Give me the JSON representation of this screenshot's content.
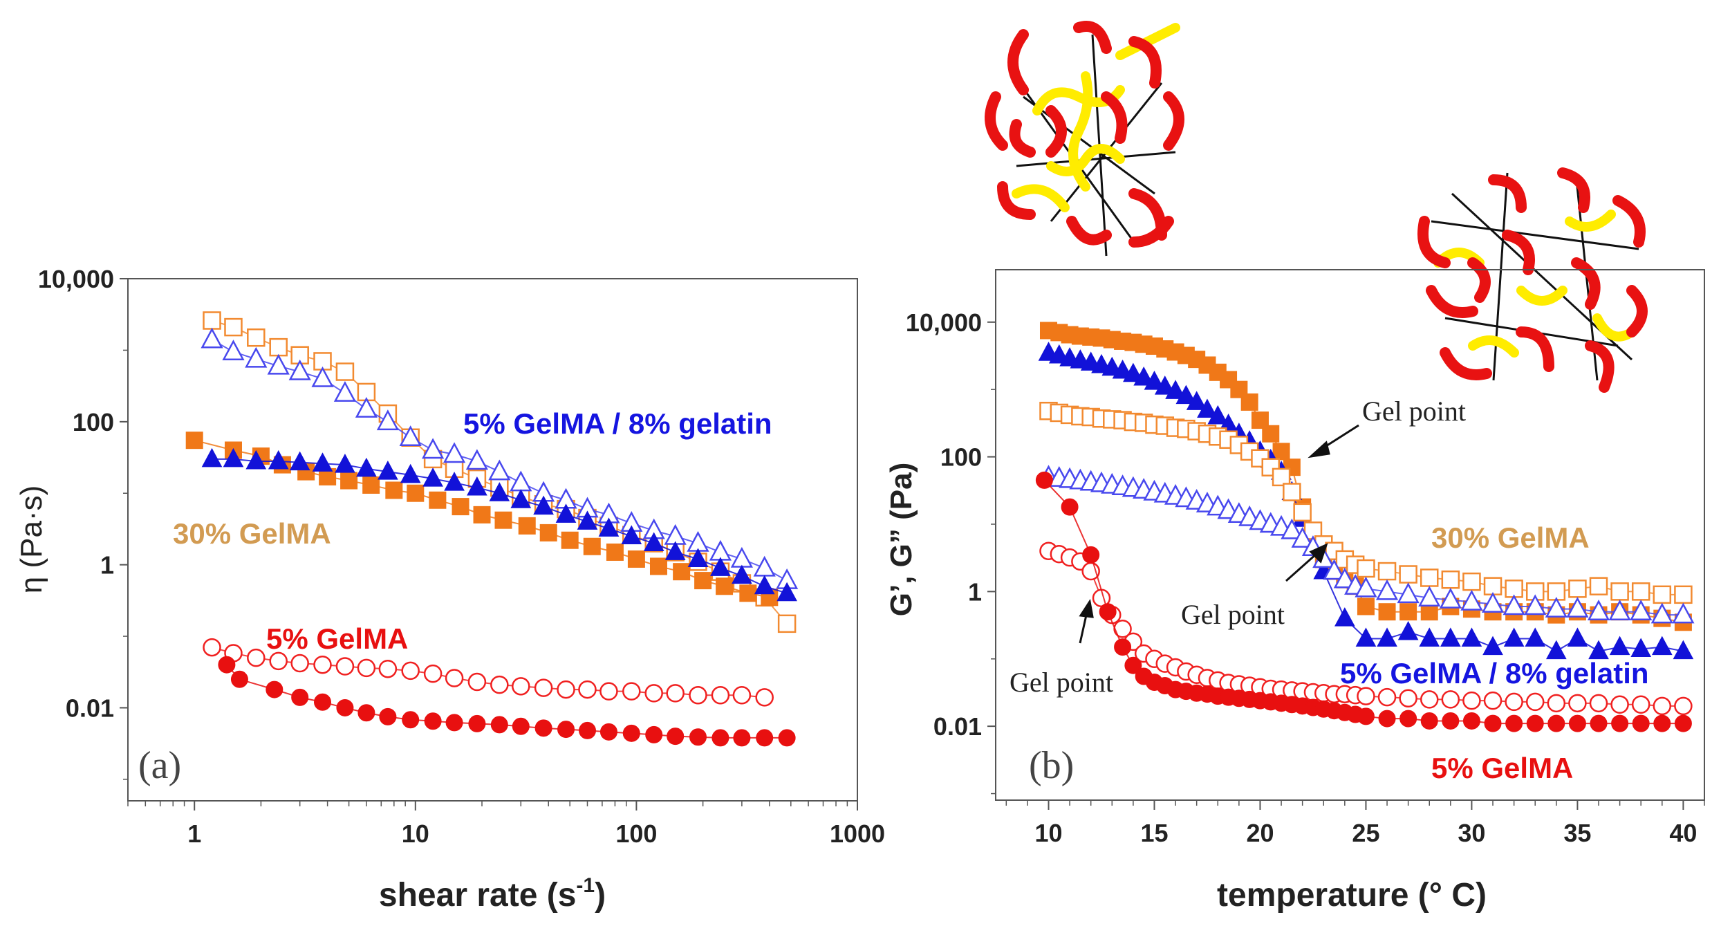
{
  "chart_data": [
    {
      "id": "a",
      "type": "scatter",
      "panel_label": "(a)",
      "xlabel_main": "shear rate (s",
      "xlabel_sup": "-1",
      "xlabel_end": ")",
      "ylabel": "η (Pa·s)",
      "xscale": "log",
      "yscale": "log",
      "xlim": [
        0.5,
        1000
      ],
      "ylim": [
        0.0005,
        10000
      ],
      "x_ticks": [
        1,
        10,
        100,
        1000
      ],
      "x_tick_labels": [
        "1",
        "10",
        "100",
        "1000"
      ],
      "y_ticks": [
        10000,
        100,
        1,
        0.01
      ],
      "y_tick_labels": [
        "10,000",
        "100",
        "1",
        "0.01"
      ],
      "annotations": [
        {
          "text": "5% GelMA / 8% gelatin",
          "color": "#1515e0"
        },
        {
          "text": "30% GelMA",
          "color": "#d29b52"
        },
        {
          "text": "5% GelMA",
          "color": "#e81010"
        }
      ],
      "series": [
        {
          "name": "30% GelMA open",
          "marker": "square",
          "filled": false,
          "color": "#f28a30",
          "x": [
            1.2,
            1.5,
            1.9,
            2.4,
            3.0,
            3.8,
            4.8,
            6.0,
            7.5,
            9.5,
            12,
            15,
            19,
            24,
            30,
            38,
            48,
            60,
            75,
            95,
            120,
            150,
            190,
            240,
            300,
            380,
            480
          ],
          "y": [
            2600,
            2100,
            1500,
            1100,
            850,
            700,
            500,
            260,
            130,
            60,
            30,
            22,
            16,
            12,
            9,
            7,
            6,
            4.5,
            3.5,
            2.6,
            2.0,
            1.5,
            1.1,
            0.8,
            0.55,
            0.35,
            0.15
          ]
        },
        {
          "name": "5% GelMA / 8% gelatin open",
          "marker": "triangle",
          "filled": false,
          "color": "#4848ee",
          "x": [
            1.2,
            1.5,
            1.9,
            2.4,
            3.0,
            3.8,
            4.8,
            6.0,
            7.5,
            9.5,
            12,
            15,
            19,
            24,
            30,
            38,
            48,
            60,
            75,
            95,
            120,
            150,
            190,
            240,
            300,
            380,
            480
          ],
          "y": [
            1400,
            950,
            750,
            600,
            500,
            400,
            250,
            150,
            100,
            60,
            40,
            35,
            28,
            20,
            14,
            10,
            8,
            6,
            5,
            3.8,
            3,
            2.5,
            2,
            1.5,
            1.2,
            0.9,
            0.6
          ]
        },
        {
          "name": "30% GelMA filled",
          "marker": "square",
          "filled": true,
          "color": "#f07818",
          "x": [
            1,
            1.5,
            2,
            2.5,
            3.2,
            4,
            5,
            6.3,
            8,
            10,
            12.6,
            16,
            20,
            25,
            32,
            40,
            50,
            63,
            80,
            100,
            126,
            160,
            200,
            250,
            320,
            400
          ],
          "y": [
            55,
            40,
            33,
            25,
            20,
            17,
            15,
            13,
            11,
            10,
            8,
            6.5,
            5,
            4.2,
            3.5,
            2.8,
            2.2,
            1.8,
            1.5,
            1.2,
            0.95,
            0.8,
            0.6,
            0.5,
            0.4,
            0.35
          ]
        },
        {
          "name": "5% GelMA / 8% gelatin filled",
          "marker": "triangle",
          "filled": true,
          "color": "#1212d8",
          "x": [
            1.2,
            1.5,
            1.9,
            2.4,
            3.0,
            3.8,
            4.8,
            6.0,
            7.5,
            9.5,
            12,
            15,
            19,
            24,
            30,
            38,
            48,
            60,
            75,
            95,
            120,
            150,
            190,
            240,
            300,
            380,
            480
          ],
          "y": [
            30,
            30,
            28,
            28,
            27,
            26,
            25,
            22,
            20,
            18,
            16,
            14,
            12,
            10,
            8,
            6.5,
            5,
            4,
            3.2,
            2.5,
            2,
            1.5,
            1.2,
            0.9,
            0.7,
            0.5,
            0.4
          ]
        },
        {
          "name": "5% GelMA open",
          "marker": "circle",
          "filled": false,
          "color": "#f02020",
          "x": [
            1.2,
            1.5,
            1.9,
            2.4,
            3.0,
            3.8,
            4.8,
            6.0,
            7.5,
            9.5,
            12,
            15,
            19,
            24,
            30,
            38,
            48,
            60,
            75,
            95,
            120,
            150,
            190,
            240,
            300,
            380
          ],
          "y": [
            0.07,
            0.058,
            0.05,
            0.045,
            0.042,
            0.04,
            0.038,
            0.036,
            0.035,
            0.033,
            0.03,
            0.026,
            0.023,
            0.021,
            0.02,
            0.019,
            0.018,
            0.018,
            0.017,
            0.017,
            0.016,
            0.016,
            0.015,
            0.015,
            0.015,
            0.014
          ]
        },
        {
          "name": "5% GelMA filled",
          "marker": "circle",
          "filled": true,
          "color": "#e81010",
          "x": [
            1.4,
            1.6,
            2.3,
            3.0,
            3.8,
            4.8,
            6.0,
            7.5,
            9.5,
            12,
            15,
            19,
            24,
            30,
            38,
            48,
            60,
            75,
            95,
            120,
            150,
            190,
            240,
            300,
            380,
            480
          ],
          "y": [
            0.04,
            0.025,
            0.018,
            0.014,
            0.012,
            0.01,
            0.0085,
            0.0075,
            0.0068,
            0.0065,
            0.0062,
            0.006,
            0.0058,
            0.0055,
            0.0052,
            0.005,
            0.0048,
            0.0046,
            0.0044,
            0.0042,
            0.004,
            0.0039,
            0.0038,
            0.0038,
            0.0038,
            0.0038
          ]
        }
      ]
    },
    {
      "id": "b",
      "type": "scatter",
      "panel_label": "(b)",
      "xlabel": "temperature (° C)",
      "ylabel": "G’, G” (Pa)",
      "xscale": "linear",
      "yscale": "log",
      "xlim": [
        7.5,
        41
      ],
      "ylim": [
        0.0008,
        60000
      ],
      "x_ticks": [
        10,
        15,
        20,
        25,
        30,
        35,
        40
      ],
      "x_tick_labels": [
        "10",
        "15",
        "20",
        "25",
        "30",
        "35",
        "40"
      ],
      "y_ticks": [
        10000,
        100,
        1,
        0.01
      ],
      "y_tick_labels": [
        "10,000",
        "100",
        "1",
        "0.01"
      ],
      "annotations": [
        {
          "text": "Gel point",
          "color": "#222222"
        },
        {
          "text": "Gel point",
          "color": "#222222"
        },
        {
          "text": "Gel point",
          "color": "#222222"
        },
        {
          "text": "30% GelMA",
          "color": "#d29b52"
        },
        {
          "text": "5% GelMA / 8% gelatin",
          "color": "#1515e0"
        },
        {
          "text": "5% GelMA",
          "color": "#e81010"
        }
      ],
      "series": [
        {
          "name": "30% GelMA G'",
          "marker": "square",
          "filled": true,
          "color": "#f07818",
          "x": [
            10,
            10.5,
            11,
            11.5,
            12,
            12.5,
            13,
            13.5,
            14,
            14.5,
            15,
            15.5,
            16,
            16.5,
            17,
            17.5,
            18,
            18.5,
            19,
            19.5,
            20,
            20.5,
            21,
            21.5,
            22,
            22.5,
            23,
            23.5,
            24,
            24.5,
            25,
            26,
            27,
            28,
            29,
            30,
            31,
            32,
            33,
            34,
            35,
            36,
            37,
            38,
            39,
            40
          ],
          "y": [
            7500,
            7000,
            6500,
            6200,
            6000,
            5800,
            5500,
            5200,
            5000,
            4700,
            4400,
            4000,
            3600,
            3200,
            2800,
            2300,
            1800,
            1400,
            1000,
            650,
            350,
            220,
            120,
            70,
            18,
            6,
            3,
            2,
            1.5,
            1.2,
            0.6,
            0.5,
            0.5,
            0.5,
            0.6,
            0.55,
            0.5,
            0.5,
            0.5,
            0.45,
            0.5,
            0.45,
            0.5,
            0.45,
            0.4,
            0.35
          ]
        },
        {
          "name": "5% GelMA / 8% gelatin G'",
          "marker": "triangle",
          "filled": true,
          "color": "#1212d8",
          "x": [
            10,
            10.5,
            11,
            11.5,
            12,
            12.5,
            13,
            13.5,
            14,
            14.5,
            15,
            15.5,
            16,
            16.5,
            17,
            17.5,
            18,
            18.5,
            19,
            19.5,
            20,
            20.5,
            21,
            21.5,
            22,
            23,
            24,
            25,
            26,
            27,
            28,
            29,
            30,
            31,
            32,
            33,
            34,
            35,
            36,
            37,
            38,
            39,
            40
          ],
          "y": [
            3500,
            3200,
            2900,
            2700,
            2500,
            2300,
            2100,
            1900,
            1700,
            1500,
            1300,
            1100,
            950,
            800,
            650,
            500,
            400,
            300,
            220,
            170,
            120,
            90,
            60,
            30,
            12,
            2,
            0.4,
            0.2,
            0.2,
            0.25,
            0.2,
            0.2,
            0.2,
            0.15,
            0.2,
            0.2,
            0.13,
            0.2,
            0.13,
            0.15,
            0.14,
            0.15,
            0.13
          ]
        },
        {
          "name": "30% GelMA G\"",
          "marker": "square",
          "filled": false,
          "color": "#f28a30",
          "x": [
            10,
            10.5,
            11,
            11.5,
            12,
            12.5,
            13,
            13.5,
            14,
            14.5,
            15,
            15.5,
            16,
            16.5,
            17,
            17.5,
            18,
            18.5,
            19,
            19.5,
            20,
            20.5,
            21,
            21.5,
            22,
            22.5,
            23,
            23.5,
            24,
            24.5,
            25,
            26,
            27,
            28,
            29,
            30,
            31,
            32,
            33,
            34,
            35,
            36,
            37,
            38,
            39,
            40
          ],
          "y": [
            480,
            450,
            420,
            400,
            390,
            370,
            360,
            350,
            330,
            320,
            300,
            290,
            270,
            260,
            240,
            220,
            200,
            180,
            150,
            120,
            95,
            70,
            50,
            30,
            15,
            8,
            5,
            4,
            3,
            2.5,
            2.2,
            2,
            1.8,
            1.6,
            1.5,
            1.4,
            1.2,
            1.1,
            1.0,
            1.0,
            1.1,
            1.2,
            1.0,
            1.0,
            0.9,
            0.9
          ]
        },
        {
          "name": "5% GelMA / 8% gelatin G\"",
          "marker": "triangle",
          "filled": false,
          "color": "#4848ee",
          "x": [
            10,
            10.5,
            11,
            11.5,
            12,
            12.5,
            13,
            13.5,
            14,
            14.5,
            15,
            15.5,
            16,
            16.5,
            17,
            17.5,
            18,
            18.5,
            19,
            19.5,
            20,
            20.5,
            21,
            21.5,
            22,
            22.5,
            23,
            23.5,
            24,
            24.5,
            25,
            26,
            27,
            28,
            29,
            30,
            31,
            32,
            33,
            34,
            35,
            36,
            37,
            38,
            39,
            40
          ],
          "y": [
            50,
            48,
            46,
            44,
            42,
            40,
            38,
            36,
            34,
            32,
            30,
            28,
            26,
            24,
            22,
            20,
            18,
            16,
            14,
            12.5,
            11,
            10,
            9,
            8,
            6,
            4.5,
            3,
            2,
            1.5,
            1.2,
            1.1,
            1.0,
            0.9,
            0.8,
            0.75,
            0.7,
            0.65,
            0.6,
            0.6,
            0.55,
            0.55,
            0.5,
            0.5,
            0.5,
            0.45,
            0.45
          ]
        },
        {
          "name": "5% GelMA G\"",
          "marker": "circle",
          "filled": false,
          "color": "#f02020",
          "x": [
            10,
            10.5,
            11,
            11.5,
            12,
            12.5,
            13,
            13.5,
            14,
            14.5,
            15,
            15.5,
            16,
            16.5,
            17,
            17.5,
            18,
            18.5,
            19,
            19.5,
            20,
            20.5,
            21,
            21.5,
            22,
            22.5,
            23,
            23.5,
            24,
            24.5,
            25,
            26,
            27,
            28,
            29,
            30,
            31,
            32,
            33,
            34,
            35,
            36,
            37,
            38,
            39,
            40
          ],
          "y": [
            4,
            3.6,
            3.2,
            2.8,
            2.0,
            0.8,
            0.45,
            0.28,
            0.18,
            0.12,
            0.1,
            0.085,
            0.075,
            0.065,
            0.058,
            0.052,
            0.048,
            0.044,
            0.042,
            0.04,
            0.038,
            0.036,
            0.035,
            0.034,
            0.033,
            0.032,
            0.031,
            0.03,
            0.03,
            0.029,
            0.028,
            0.027,
            0.026,
            0.025,
            0.025,
            0.024,
            0.024,
            0.023,
            0.023,
            0.022,
            0.022,
            0.022,
            0.021,
            0.021,
            0.02,
            0.02
          ]
        },
        {
          "name": "5% GelMA G'",
          "marker": "circle",
          "filled": true,
          "color": "#e81010",
          "x": [
            9.8,
            11,
            12,
            12.8,
            13.5,
            14,
            14.5,
            15,
            15.5,
            16,
            16.5,
            17,
            17.5,
            18,
            18.5,
            19,
            19.5,
            20,
            20.5,
            21,
            21.5,
            22,
            22.5,
            23,
            23.5,
            24,
            24.5,
            25,
            26,
            27,
            28,
            29,
            30,
            31,
            32,
            33,
            34,
            35,
            36,
            37,
            38,
            39,
            40
          ],
          "y": [
            45,
            18,
            3.5,
            0.5,
            0.15,
            0.08,
            0.055,
            0.045,
            0.04,
            0.035,
            0.033,
            0.031,
            0.03,
            0.028,
            0.027,
            0.026,
            0.025,
            0.024,
            0.023,
            0.022,
            0.021,
            0.02,
            0.019,
            0.018,
            0.017,
            0.016,
            0.015,
            0.014,
            0.013,
            0.013,
            0.012,
            0.012,
            0.012,
            0.011,
            0.011,
            0.011,
            0.011,
            0.011,
            0.011,
            0.011,
            0.011,
            0.011,
            0.011
          ]
        }
      ]
    }
  ]
}
